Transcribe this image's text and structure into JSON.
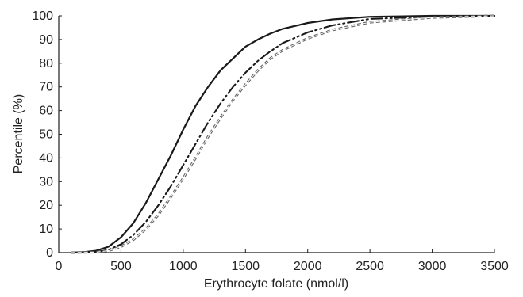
{
  "chart_data": {
    "type": "line",
    "title": "",
    "xlabel": "Erythrocyte folate (nmol/l)",
    "ylabel": "Percentile (%)",
    "xlim": [
      0,
      3500
    ],
    "ylim": [
      0,
      100
    ],
    "xticks": [
      0,
      500,
      1000,
      1500,
      2000,
      2500,
      3000,
      3500
    ],
    "yticks": [
      0,
      10,
      20,
      30,
      40,
      50,
      60,
      70,
      80,
      90,
      100
    ],
    "xtick_labels": [
      "0",
      "500",
      "1000",
      "1500",
      "2000",
      "2500",
      "3000",
      "3500"
    ],
    "ytick_labels": [
      "0",
      "10",
      "20",
      "30",
      "40",
      "50",
      "60",
      "70",
      "80",
      "90",
      "100"
    ],
    "grid": false,
    "legend": "none",
    "series": [
      {
        "style": "solid",
        "color": "#1a1a1a",
        "x": [
          100,
          200,
          300,
          400,
          500,
          600,
          700,
          800,
          900,
          1000,
          1100,
          1200,
          1300,
          1400,
          1500,
          1600,
          1700,
          1800,
          2000,
          2200,
          2500,
          3000,
          3500
        ],
        "y": [
          0,
          0.2,
          0.8,
          2.5,
          6.5,
          12.5,
          21,
          31,
          41,
          52,
          62,
          70,
          77,
          82,
          87,
          90,
          92.5,
          94.5,
          97,
          98.5,
          99.6,
          100,
          100
        ]
      },
      {
        "style": "dash-dot",
        "color": "#1a1a1a",
        "x": [
          100,
          300,
          400,
          500,
          600,
          700,
          800,
          900,
          1000,
          1100,
          1200,
          1300,
          1400,
          1500,
          1600,
          1700,
          1800,
          2000,
          2200,
          2500,
          3000,
          3500
        ],
        "y": [
          0,
          0.3,
          1.2,
          3.5,
          7.5,
          13,
          20,
          28,
          37,
          46,
          55,
          63,
          70,
          76,
          81,
          85,
          88.5,
          93,
          96,
          98.7,
          99.7,
          100
        ]
      },
      {
        "style": "dashed-double",
        "color": "#666666",
        "x": [
          100,
          300,
          400,
          500,
          600,
          700,
          800,
          900,
          1000,
          1100,
          1200,
          1300,
          1400,
          1500,
          1600,
          1700,
          1800,
          2000,
          2200,
          2500,
          3000,
          3500
        ],
        "y": [
          0,
          0.2,
          0.8,
          2.5,
          5.5,
          10,
          16,
          23.5,
          31.5,
          40,
          49,
          57,
          64.5,
          71,
          77,
          82,
          85.5,
          90.5,
          94,
          97.3,
          99.3,
          100
        ]
      }
    ]
  }
}
